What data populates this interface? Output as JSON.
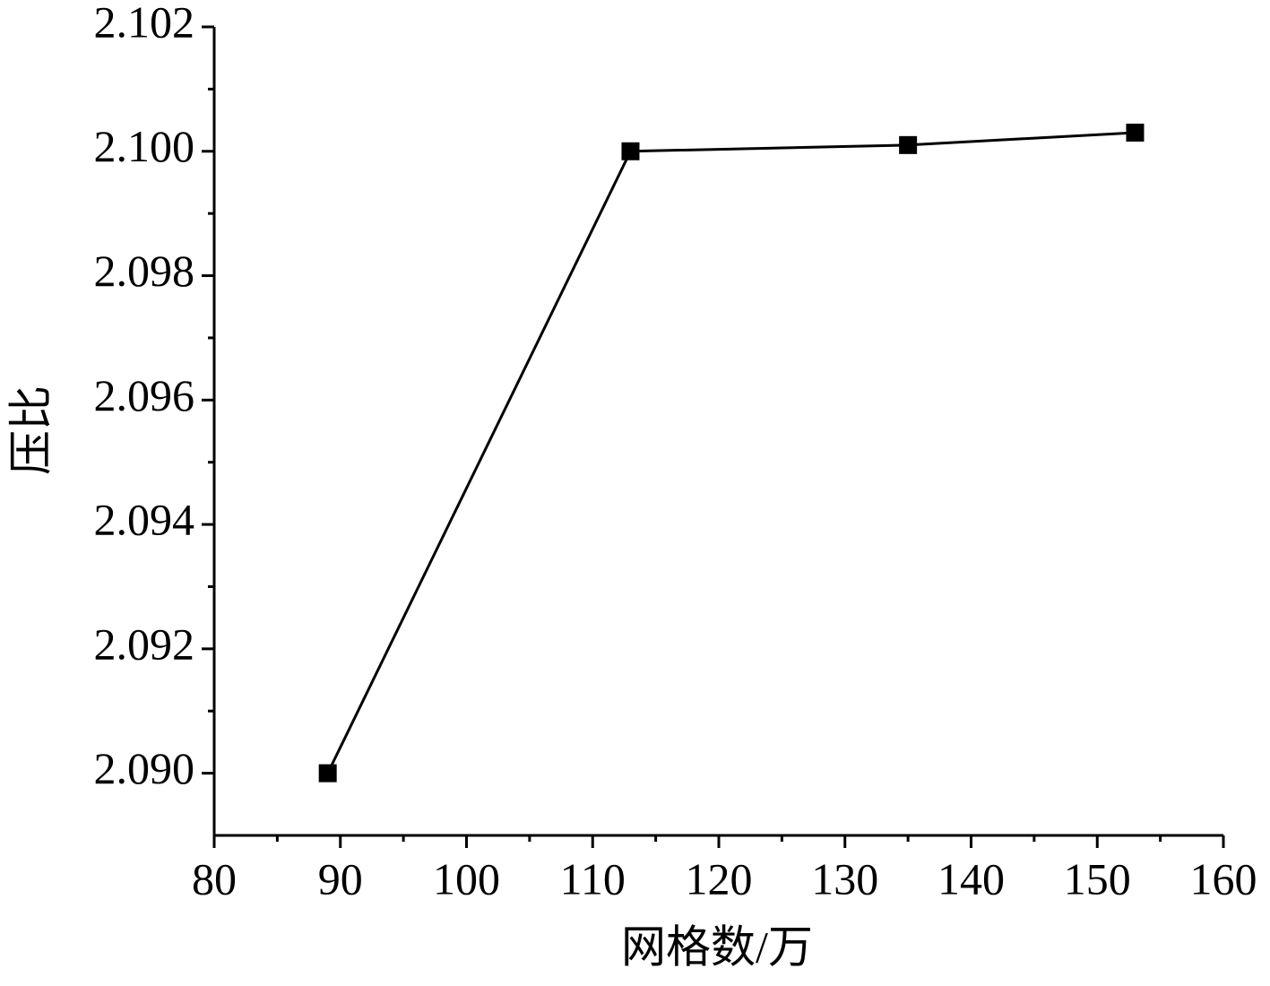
{
  "chart_data": {
    "type": "line",
    "x_label": "网格数/万",
    "y_label": "压比",
    "x": [
      89,
      113,
      135,
      153
    ],
    "series": [
      {
        "color": "#000000",
        "values": [
          2.09,
          2.1,
          2.1001,
          2.1003
        ]
      }
    ],
    "xlim": [
      80,
      160
    ],
    "xticks": [
      80,
      90,
      100,
      110,
      120,
      130,
      140,
      150,
      160
    ],
    "ylim": [
      2.089,
      2.102
    ],
    "yticks": [
      {
        "value": 2.09,
        "label": "2.090"
      },
      2.092,
      2.094,
      2.096,
      2.098,
      {
        "value": 2.1,
        "label": "2.100"
      },
      2.102
    ],
    "grid": false,
    "marker": "square"
  }
}
